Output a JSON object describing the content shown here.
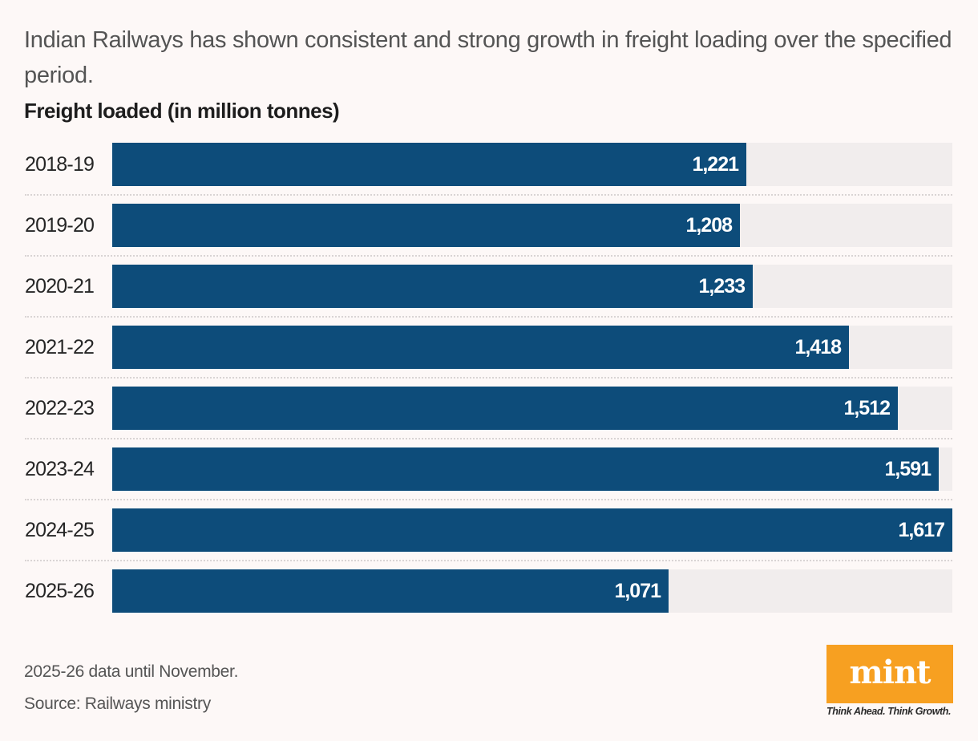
{
  "header": {
    "subtitle": "Indian Railways has shown consistent and strong growth in freight loading over the specified period."
  },
  "chart_data": {
    "type": "bar",
    "orientation": "horizontal",
    "title": "Freight loaded (in million tonnes)",
    "subtitle": "Indian Railways has shown consistent and strong growth in freight loading over the specified period.",
    "xlabel": "",
    "ylabel": "",
    "categories": [
      "2018-19",
      "2019-20",
      "2020-21",
      "2021-22",
      "2022-23",
      "2023-24",
      "2024-25",
      "2025-26"
    ],
    "values": [
      1221,
      1208,
      1233,
      1418,
      1512,
      1591,
      1617,
      1071
    ],
    "value_labels": [
      "1,221",
      "1,208",
      "1,233",
      "1,418",
      "1,512",
      "1,591",
      "1,617",
      "1,071"
    ],
    "xlim": [
      0,
      1617
    ],
    "grid": false,
    "legend": "none",
    "bar_color": "#0d4c7a",
    "track_color": "#f1eded",
    "annotations": [
      "2025-26 data until November."
    ]
  },
  "footer": {
    "note": "2025-26 data until November.",
    "source": "Source: Railways ministry"
  },
  "branding": {
    "logo_text": "mint",
    "tagline": "Think Ahead. Think Growth.",
    "logo_color": "#f7a021"
  }
}
